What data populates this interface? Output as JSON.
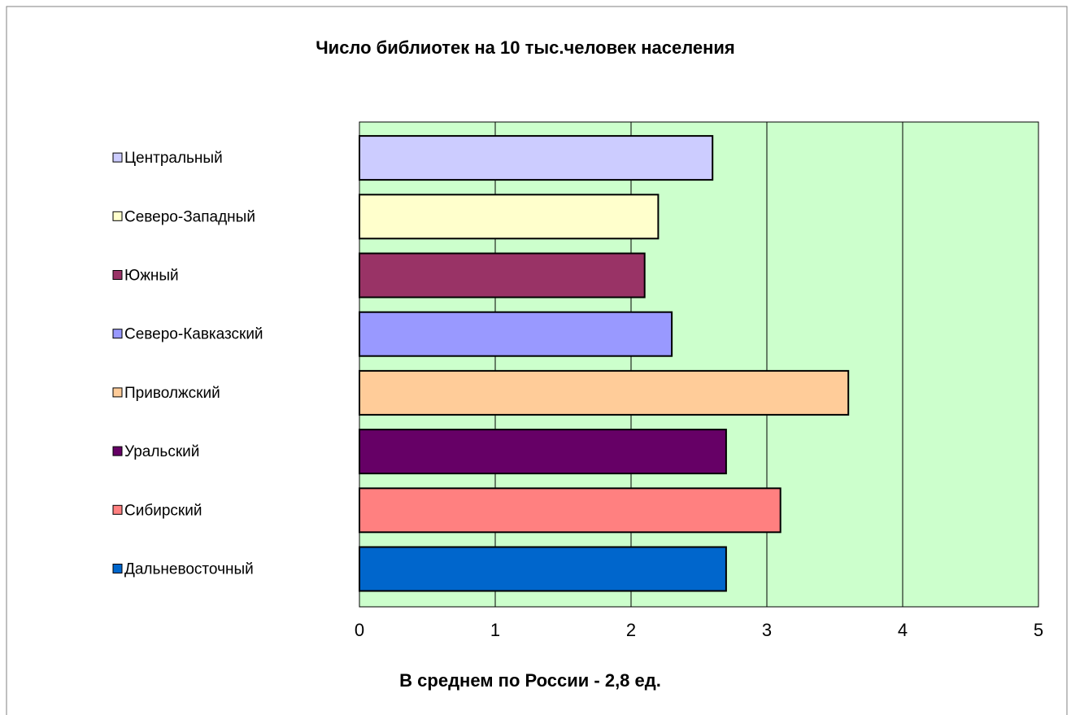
{
  "chart_data": {
    "type": "bar",
    "orientation": "horizontal",
    "title": "Число библиотек на 10 тыс.человек населения",
    "annotation": "В среднем по России - 2,8 ед.",
    "series": [
      {
        "name": "Центральный",
        "color": "#ccccff",
        "values": [
          2.6
        ]
      },
      {
        "name": "Северо-Западный",
        "color": "#ffffcc",
        "values": [
          2.2
        ]
      },
      {
        "name": "Южный",
        "color": "#993366",
        "values": [
          2.1
        ]
      },
      {
        "name": "Северо-Кавказский",
        "color": "#9999ff",
        "values": [
          2.3
        ]
      },
      {
        "name": "Приволжский",
        "color": "#ffcc99",
        "values": [
          3.6
        ]
      },
      {
        "name": "Уральский",
        "color": "#660066",
        "values": [
          2.7
        ]
      },
      {
        "name": "Сибирский",
        "color": "#ff8080",
        "values": [
          3.1
        ]
      },
      {
        "name": "Дальневосточный",
        "color": "#0066cc",
        "values": [
          2.7
        ]
      }
    ],
    "xlim": [
      0,
      5
    ],
    "xticks": [
      0,
      1,
      2,
      3,
      4,
      5
    ],
    "grid": true,
    "plot_background": "#ccffcc",
    "legend": "left"
  }
}
